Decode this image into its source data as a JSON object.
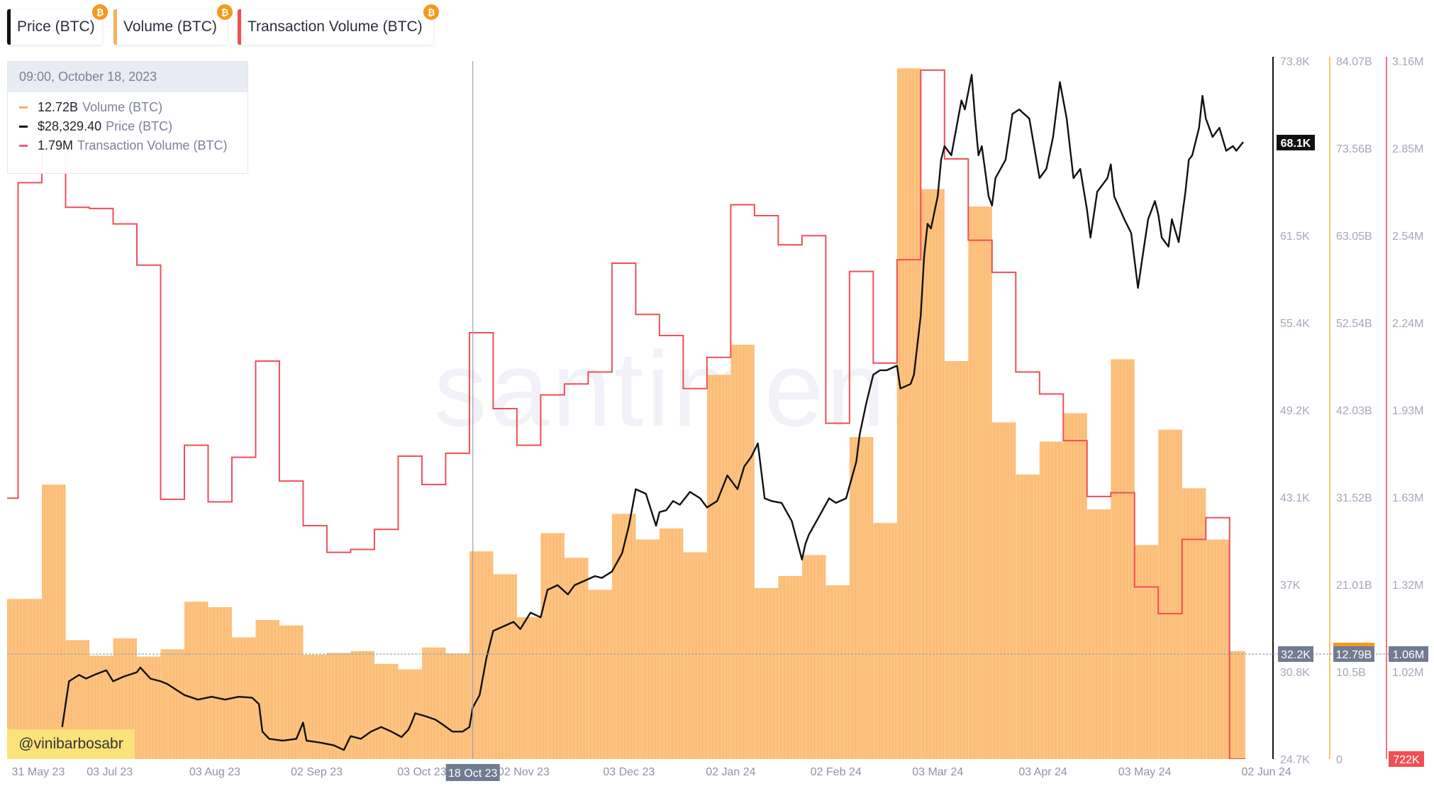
{
  "tabs": [
    {
      "label": "Price (BTC)",
      "color": "#111111",
      "badge": "₿"
    },
    {
      "label": "Volume (BTC)",
      "color": "#f5b25a",
      "badge": "₿"
    },
    {
      "label": "Transaction Volume (BTC)",
      "color": "#ef4f57",
      "badge": "₿"
    }
  ],
  "tooltip": {
    "datetime": "09:00, October 18, 2023",
    "items": [
      {
        "value": "12.72B",
        "name": "Volume (BTC)",
        "color": "#f5b25a"
      },
      {
        "value": "$28,329.40",
        "name": "Price (BTC)",
        "color": "#111111"
      },
      {
        "value": "1.79M",
        "name": "Transaction Volume (BTC)",
        "color": "#ef5f87"
      }
    ]
  },
  "watermark": "santiment",
  "credit": "@vinibarbosabr",
  "chart_data": {
    "type": "line+bar",
    "grid": false,
    "legend": "top-left",
    "x_ticks": [
      {
        "date": "2023-05-31",
        "label": "31 May 23"
      },
      {
        "date": "2023-07-03",
        "label": "03 Jul 23"
      },
      {
        "date": "2023-08-03",
        "label": "03 Aug 23"
      },
      {
        "date": "2023-09-02",
        "label": "02 Sep 23"
      },
      {
        "date": "2023-10-03",
        "label": "03 Oct 23"
      },
      {
        "date": "2023-11-02",
        "label": "02 Nov 23"
      },
      {
        "date": "2023-12-03",
        "label": "03 Dec 23"
      },
      {
        "date": "2024-01-02",
        "label": "02 Jan 24"
      },
      {
        "date": "2024-02-02",
        "label": "02 Feb 24"
      },
      {
        "date": "2024-03-03",
        "label": "03 Mar 24"
      },
      {
        "date": "2024-04-03",
        "label": "03 Apr 24"
      },
      {
        "date": "2024-05-03",
        "label": "03 May 24"
      },
      {
        "date": "2024-06-02",
        "label": "02 Jun 24"
      }
    ],
    "crosshair": {
      "date": "2023-10-18",
      "date_label": "18 Oct 23",
      "price_label": "32.2K",
      "volume_label": "12.79B",
      "tx_label": "1.06M"
    },
    "axes": {
      "price": {
        "min": 24700,
        "max": 73800,
        "ticks": [
          "73.8K",
          "",
          "61.5K",
          "55.4K",
          "49.2K",
          "43.1K",
          "37K",
          "30.8K",
          "24.7K"
        ],
        "last_label": "68.1K",
        "color": "#111111"
      },
      "volume": {
        "min": 0,
        "max": 84.07,
        "unit": "B",
        "ticks": [
          "84.07B",
          "73.56B",
          "63.05B",
          "52.54B",
          "42.03B",
          "31.52B",
          "21.01B",
          "10.5B",
          "0"
        ],
        "color": "#f5c86e"
      },
      "tx": {
        "min": 0.722,
        "max": 3.16,
        "unit": "M",
        "ticks": [
          "3.16M",
          "2.85M",
          "2.54M",
          "2.24M",
          "1.93M",
          "1.63M",
          "1.32M",
          "1.02M",
          ""
        ],
        "last_label": "722K",
        "color": "#f0757a"
      }
    },
    "weeks": [
      "2023-05-30",
      "2023-06-06",
      "2023-06-13",
      "2023-06-20",
      "2023-06-27",
      "2023-07-04",
      "2023-07-11",
      "2023-07-18",
      "2023-07-25",
      "2023-08-01",
      "2023-08-08",
      "2023-08-15",
      "2023-08-22",
      "2023-08-29",
      "2023-09-05",
      "2023-09-12",
      "2023-09-19",
      "2023-09-26",
      "2023-10-03",
      "2023-10-10",
      "2023-10-17",
      "2023-10-24",
      "2023-10-31",
      "2023-11-07",
      "2023-11-14",
      "2023-11-21",
      "2023-11-28",
      "2023-12-05",
      "2023-12-12",
      "2023-12-19",
      "2023-12-26",
      "2024-01-02",
      "2024-01-09",
      "2024-01-16",
      "2024-01-23",
      "2024-01-30",
      "2024-02-06",
      "2024-02-13",
      "2024-02-20",
      "2024-02-27",
      "2024-03-05",
      "2024-03-12",
      "2024-03-19",
      "2024-03-26",
      "2024-04-02",
      "2024-04-09",
      "2024-04-16",
      "2024-04-23",
      "2024-04-30",
      "2024-05-07",
      "2024-05-14",
      "2024-05-21",
      "2024-05-28"
    ],
    "series": [
      {
        "name": "Volume (BTC)",
        "type": "bar",
        "axis": "volume",
        "color": "#fdc27f",
        "values": [
          19.28,
          19.28,
          33.05,
          14.32,
          12.45,
          14.54,
          12.34,
          13.22,
          18.95,
          18.29,
          14.65,
          16.75,
          16.09,
          12.56,
          12.78,
          13.0,
          11.46,
          10.8,
          13.44,
          12.72,
          25.01,
          22.26,
          17.08,
          27.21,
          24.24,
          20.38,
          29.53,
          26.44,
          27.77,
          24.9,
          46.28,
          49.91,
          20.6,
          22.04,
          24.57,
          20.93,
          38.78,
          28.43,
          83.19,
          68.64,
          47.93,
          66.55,
          40.55,
          34.27,
          38.23,
          41.65,
          30.08,
          48.15,
          25.78,
          39.67,
          32.61,
          26.44,
          13.0
        ]
      },
      {
        "name": "Transaction Volume (BTC)",
        "type": "step",
        "axis": "tx",
        "color": "#ef4f57",
        "values": [
          1.633,
          2.735,
          2.95,
          2.649,
          2.645,
          2.591,
          2.447,
          1.629,
          1.818,
          1.62,
          1.776,
          2.112,
          1.693,
          1.537,
          1.444,
          1.454,
          1.524,
          1.78,
          1.681,
          1.79,
          2.211,
          1.946,
          1.818,
          1.994,
          2.032,
          2.074,
          2.454,
          2.275,
          2.201,
          2.016,
          2.125,
          2.658,
          2.62,
          2.518,
          2.55,
          1.895,
          2.425,
          2.105,
          2.466,
          3.128,
          2.818,
          2.534,
          2.422,
          2.074,
          1.997,
          1.834,
          1.639,
          1.652,
          1.323,
          1.23,
          1.489,
          1.565,
          0.722
        ]
      },
      {
        "name": "Price (BTC)",
        "type": "line",
        "axis": "price",
        "color": "#111111",
        "points": [
          [
            "2023-06-19",
            26950
          ],
          [
            "2023-06-21",
            30170
          ],
          [
            "2023-06-24",
            30620
          ],
          [
            "2023-06-26",
            30360
          ],
          [
            "2023-06-29",
            30680
          ],
          [
            "2023-07-02",
            30940
          ],
          [
            "2023-07-04",
            30170
          ],
          [
            "2023-07-07",
            30490
          ],
          [
            "2023-07-11",
            30810
          ],
          [
            "2023-07-12",
            31140
          ],
          [
            "2023-07-15",
            30360
          ],
          [
            "2023-07-18",
            30170
          ],
          [
            "2023-07-20",
            29980
          ],
          [
            "2023-07-25",
            29200
          ],
          [
            "2023-07-29",
            28880
          ],
          [
            "2023-08-02",
            29080
          ],
          [
            "2023-08-06",
            28880
          ],
          [
            "2023-08-10",
            29080
          ],
          [
            "2023-08-14",
            29010
          ],
          [
            "2023-08-16",
            28560
          ],
          [
            "2023-08-17",
            26630
          ],
          [
            "2023-08-19",
            26120
          ],
          [
            "2023-08-23",
            25990
          ],
          [
            "2023-08-27",
            26120
          ],
          [
            "2023-08-29",
            27270
          ],
          [
            "2023-08-30",
            25990
          ],
          [
            "2023-09-03",
            25860
          ],
          [
            "2023-09-07",
            25670
          ],
          [
            "2023-09-10",
            25340
          ],
          [
            "2023-09-12",
            26310
          ],
          [
            "2023-09-15",
            26120
          ],
          [
            "2023-09-18",
            26630
          ],
          [
            "2023-09-21",
            26950
          ],
          [
            "2023-09-24",
            26630
          ],
          [
            "2023-09-27",
            26240
          ],
          [
            "2023-09-29",
            26760
          ],
          [
            "2023-09-30",
            27270
          ],
          [
            "2023-10-01",
            27920
          ],
          [
            "2023-10-04",
            27720
          ],
          [
            "2023-10-07",
            27470
          ],
          [
            "2023-10-09",
            27150
          ],
          [
            "2023-10-12",
            26630
          ],
          [
            "2023-10-15",
            26630
          ],
          [
            "2023-10-17",
            26950
          ],
          [
            "2023-10-18",
            28329.4
          ],
          [
            "2023-10-20",
            29200
          ],
          [
            "2023-10-22",
            31780
          ],
          [
            "2023-10-24",
            33710
          ],
          [
            "2023-10-27",
            34030
          ],
          [
            "2023-10-30",
            34350
          ],
          [
            "2023-11-01",
            33840
          ],
          [
            "2023-11-04",
            35000
          ],
          [
            "2023-11-07",
            34670
          ],
          [
            "2023-11-09",
            36600
          ],
          [
            "2023-11-12",
            36930
          ],
          [
            "2023-11-15",
            36280
          ],
          [
            "2023-11-17",
            36930
          ],
          [
            "2023-11-20",
            37250
          ],
          [
            "2023-11-23",
            37570
          ],
          [
            "2023-11-25",
            37440
          ],
          [
            "2023-11-28",
            37890
          ],
          [
            "2023-12-01",
            39180
          ],
          [
            "2023-12-03",
            41110
          ],
          [
            "2023-12-05",
            43680
          ],
          [
            "2023-12-08",
            43360
          ],
          [
            "2023-12-11",
            41110
          ],
          [
            "2023-12-12",
            42070
          ],
          [
            "2023-12-14",
            42200
          ],
          [
            "2023-12-16",
            42850
          ],
          [
            "2023-12-18",
            42590
          ],
          [
            "2023-12-21",
            43490
          ],
          [
            "2023-12-24",
            43040
          ],
          [
            "2023-12-26",
            42400
          ],
          [
            "2023-12-29",
            42850
          ],
          [
            "2024-01-01",
            44650
          ],
          [
            "2024-01-04",
            43680
          ],
          [
            "2024-01-06",
            45290
          ],
          [
            "2024-01-08",
            45940
          ],
          [
            "2024-01-10",
            46900
          ],
          [
            "2024-01-12",
            43040
          ],
          [
            "2024-01-14",
            42850
          ],
          [
            "2024-01-17",
            42720
          ],
          [
            "2024-01-20",
            41430
          ],
          [
            "2024-01-23",
            38730
          ],
          [
            "2024-01-24",
            39820
          ],
          [
            "2024-01-25",
            40470
          ],
          [
            "2024-01-28",
            41750
          ],
          [
            "2024-01-31",
            43040
          ],
          [
            "2024-02-02",
            42720
          ],
          [
            "2024-02-05",
            43040
          ],
          [
            "2024-02-08",
            45610
          ],
          [
            "2024-02-09",
            47540
          ],
          [
            "2024-02-11",
            49800
          ],
          [
            "2024-02-13",
            51730
          ],
          [
            "2024-02-15",
            52050
          ],
          [
            "2024-02-17",
            52050
          ],
          [
            "2024-02-20",
            52370
          ],
          [
            "2024-02-21",
            50760
          ],
          [
            "2024-02-24",
            51080
          ],
          [
            "2024-02-25",
            51730
          ],
          [
            "2024-02-27",
            55910
          ],
          [
            "2024-02-28",
            60090
          ],
          [
            "2024-02-29",
            62350
          ],
          [
            "2024-03-01",
            62020
          ],
          [
            "2024-03-03",
            64280
          ],
          [
            "2024-03-04",
            66850
          ],
          [
            "2024-03-05",
            67810
          ],
          [
            "2024-03-07",
            67170
          ],
          [
            "2024-03-08",
            68460
          ],
          [
            "2024-03-10",
            71030
          ],
          [
            "2024-03-11",
            70390
          ],
          [
            "2024-03-13",
            72830
          ],
          [
            "2024-03-14",
            69750
          ],
          [
            "2024-03-15",
            67170
          ],
          [
            "2024-03-16",
            67810
          ],
          [
            "2024-03-18",
            64280
          ],
          [
            "2024-03-19",
            63630
          ],
          [
            "2024-03-20",
            65560
          ],
          [
            "2024-03-23",
            66850
          ],
          [
            "2024-03-25",
            70070
          ],
          [
            "2024-03-27",
            70390
          ],
          [
            "2024-03-30",
            69750
          ],
          [
            "2024-04-02",
            65560
          ],
          [
            "2024-04-04",
            66210
          ],
          [
            "2024-04-06",
            68460
          ],
          [
            "2024-04-08",
            72320
          ],
          [
            "2024-04-10",
            69750
          ],
          [
            "2024-04-12",
            65560
          ],
          [
            "2024-04-14",
            66210
          ],
          [
            "2024-04-16",
            63310
          ],
          [
            "2024-04-17",
            61380
          ],
          [
            "2024-04-19",
            64600
          ],
          [
            "2024-04-22",
            65560
          ],
          [
            "2024-04-23",
            66530
          ],
          [
            "2024-04-24",
            64280
          ],
          [
            "2024-04-27",
            62670
          ],
          [
            "2024-04-29",
            61700
          ],
          [
            "2024-05-01",
            57840
          ],
          [
            "2024-05-02",
            59450
          ],
          [
            "2024-05-04",
            62670
          ],
          [
            "2024-05-06",
            63950
          ],
          [
            "2024-05-07",
            62990
          ],
          [
            "2024-05-08",
            61380
          ],
          [
            "2024-05-10",
            60740
          ],
          [
            "2024-05-11",
            62670
          ],
          [
            "2024-05-13",
            61060
          ],
          [
            "2024-05-15",
            64600
          ],
          [
            "2024-05-16",
            66850
          ],
          [
            "2024-05-17",
            67170
          ],
          [
            "2024-05-19",
            69100
          ],
          [
            "2024-05-20",
            71350
          ],
          [
            "2024-05-21",
            69750
          ],
          [
            "2024-05-23",
            68460
          ],
          [
            "2024-05-25",
            69100
          ],
          [
            "2024-05-27",
            67490
          ],
          [
            "2024-05-29",
            67810
          ],
          [
            "2024-05-30",
            67490
          ],
          [
            "2024-06-01",
            68100
          ]
        ]
      }
    ]
  }
}
